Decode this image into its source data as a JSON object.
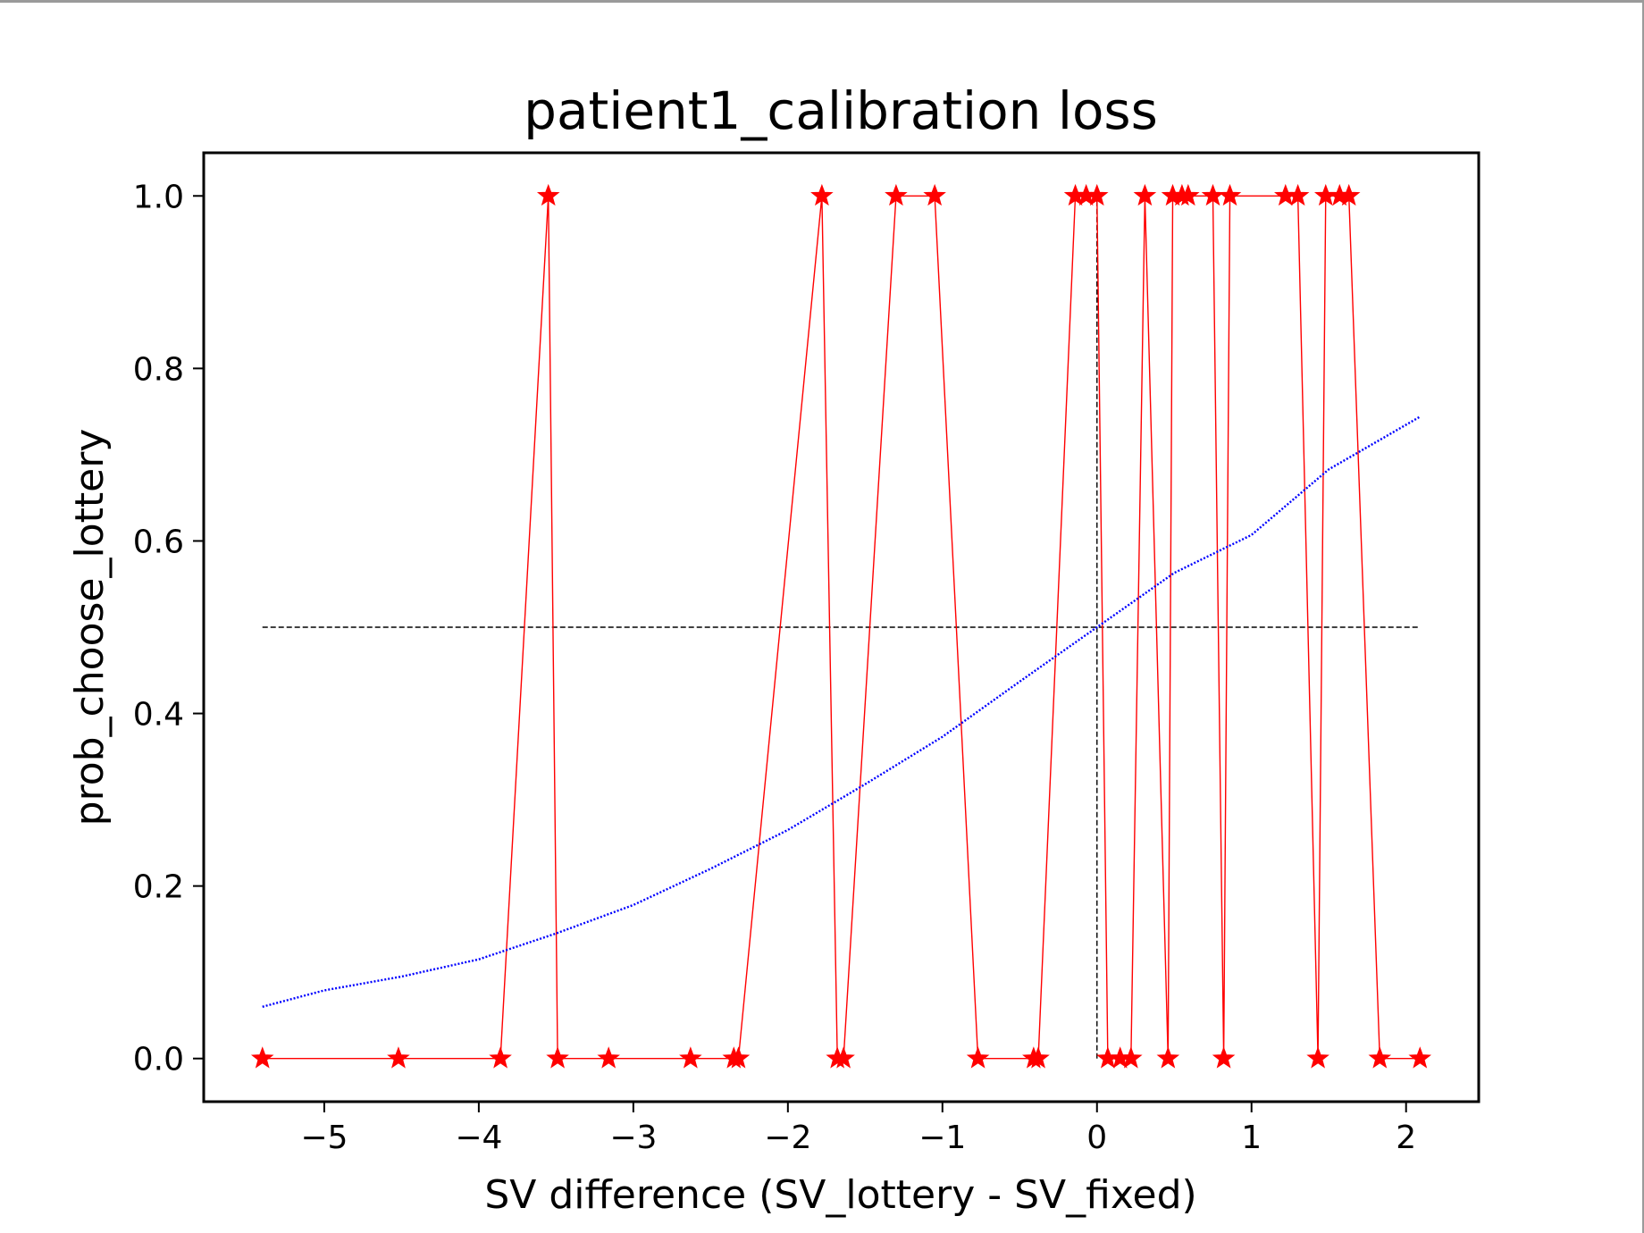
{
  "chart_data": {
    "type": "line",
    "title": "patient1_calibration loss",
    "xlabel": "SV difference (SV_lottery - SV_fixed)",
    "ylabel": "prob_choose_lottery",
    "xlim": [
      -5.78,
      2.47
    ],
    "ylim": [
      -0.05,
      1.05
    ],
    "xticks": [
      -5,
      -4,
      -3,
      -2,
      -1,
      0,
      1,
      2
    ],
    "yticks": [
      0.0,
      0.2,
      0.4,
      0.6,
      0.8,
      1.0
    ],
    "xtick_labels": [
      "−5",
      "−4",
      "−3",
      "−2",
      "−1",
      "0",
      "1",
      "2"
    ],
    "ytick_labels": [
      "0.0",
      "0.2",
      "0.4",
      "0.6",
      "0.8",
      "1.0"
    ],
    "grid": false,
    "series": [
      {
        "color": "#ff0000",
        "marker": "star",
        "x": [
          -5.4,
          -4.52,
          -3.86,
          -3.55,
          -3.49,
          -3.16,
          -2.63,
          -2.35,
          -2.32,
          -1.78,
          -1.68,
          -1.64,
          -1.3,
          -1.05,
          -0.77,
          -0.41,
          -0.38,
          -0.14,
          -0.07,
          0.0,
          0.07,
          0.15,
          0.22,
          0.31,
          0.46,
          0.49,
          0.55,
          0.59,
          0.75,
          0.82,
          0.86,
          1.22,
          1.3,
          1.43,
          1.48,
          1.57,
          1.63,
          1.83,
          2.09
        ],
        "y": [
          0,
          0,
          0,
          1,
          0,
          0,
          0,
          0,
          0,
          1,
          0,
          0,
          1,
          1,
          0,
          0,
          0,
          1,
          1,
          1,
          0,
          0,
          0,
          1,
          0,
          1,
          1,
          1,
          1,
          0,
          1,
          1,
          1,
          0,
          1,
          1,
          1,
          0,
          0
        ]
      },
      {
        "color": "#0000ff",
        "style": "dotted-line",
        "x": [
          -5.4,
          -5.0,
          -4.5,
          -4.0,
          -3.5,
          -3.0,
          -2.5,
          -2.0,
          -1.5,
          -1.0,
          -0.5,
          0.0,
          0.5,
          1.0,
          1.5,
          2.09
        ],
        "y": [
          0.06,
          0.079,
          0.095,
          0.115,
          0.145,
          0.178,
          0.22,
          0.265,
          0.318,
          0.373,
          0.437,
          0.5,
          0.563,
          0.607,
          0.683,
          0.744
        ]
      }
    ],
    "reference_lines": [
      {
        "orientation": "horizontal",
        "y": 0.5,
        "x_from": -5.4,
        "x_to": 2.09,
        "style": "dashed",
        "color": "#000000"
      },
      {
        "orientation": "vertical",
        "x": 0.0,
        "y_from": 0.0,
        "y_to": 1.0,
        "style": "dashed",
        "color": "#000000"
      }
    ]
  }
}
